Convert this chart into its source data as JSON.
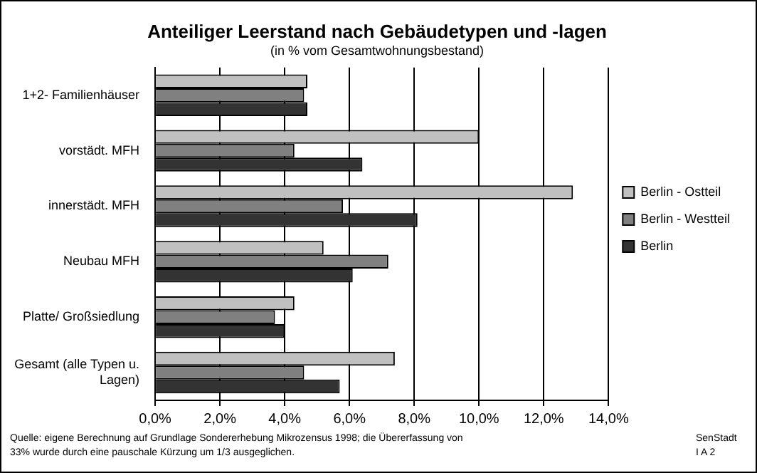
{
  "chart_data": {
    "type": "bar",
    "orientation": "horizontal",
    "title": "Anteiliger Leerstand nach Gebäudetypen und -lagen",
    "subtitle": "(in % vom Gesamtwohnungsbestand)",
    "categories": [
      "1+2- Familienhäuser",
      "vorstädt. MFH",
      "innerstädt. MFH",
      "Neubau MFH",
      "Platte/ Großsiedlung",
      "Gesamt (alle Typen u. Lagen)"
    ],
    "series": [
      {
        "name": "Berlin - Ostteil",
        "color": "#c0c0c0",
        "values": [
          4.7,
          10.0,
          12.9,
          5.2,
          4.3,
          7.4
        ]
      },
      {
        "name": "Berlin - Westteil",
        "color": "#808080",
        "values": [
          4.6,
          4.3,
          5.8,
          7.2,
          3.7,
          4.6
        ]
      },
      {
        "name": "Berlin",
        "color": "#333333",
        "values": [
          4.7,
          6.4,
          8.1,
          6.1,
          4.0,
          5.7
        ]
      }
    ],
    "xlim": [
      0,
      14
    ],
    "xticks": [
      {
        "value": 0,
        "label": "0,0%"
      },
      {
        "value": 2,
        "label": "2,0%"
      },
      {
        "value": 4,
        "label": "4,0%"
      },
      {
        "value": 6,
        "label": "6,0%"
      },
      {
        "value": 8,
        "label": "8,0%"
      },
      {
        "value": 10,
        "label": "10,0%"
      },
      {
        "value": 12,
        "label": "12,0%"
      },
      {
        "value": 14,
        "label": "14,0%"
      }
    ],
    "grid": "x",
    "legend": "right",
    "annotations": [
      "Quelle: eigene Berechnung auf Grundlage Sondererhebung Mikrozensus 1998; die Übererfassung von 33% wurde durch eine pauschale Kürzung um 1/3 ausgeglichen.",
      "SenStadt I A 2"
    ]
  }
}
